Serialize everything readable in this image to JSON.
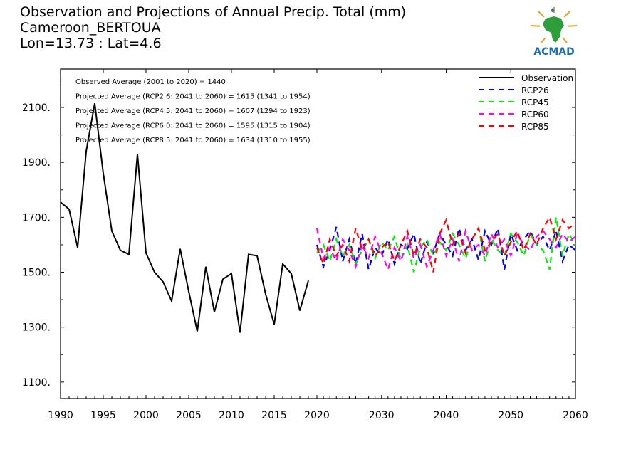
{
  "title_lines": [
    "Observation and Projections of Annual Precip. Total (mm)",
    "Cameroon_BERTOUA",
    "Lon=13.73 : Lat=4.6"
  ],
  "logo": {
    "text": "ACMAD"
  },
  "colors": {
    "Observation": "#000000",
    "RCP26": "#0000ff",
    "RCP45": "#00ee00",
    "RCP60": "#ff00ff",
    "RCP85": "#ff0000"
  },
  "chart_data": {
    "type": "line",
    "ylim": [
      1040,
      2240
    ],
    "y_ticks": [
      1100,
      1300,
      1500,
      1700,
      1900,
      2100
    ],
    "y_tick_labels": [
      "1100.",
      "1300.",
      "1500.",
      "1700.",
      "1900.",
      "2100."
    ],
    "x_ticks": [
      1990,
      1995,
      2000,
      2005,
      2010,
      2015,
      2020,
      2030,
      2040,
      2050,
      2060
    ],
    "x_tick_labels": [
      "1990",
      "1995",
      "2000",
      "2005",
      "2010",
      "2015",
      "2020",
      "2030",
      "2040",
      "2050",
      "2060"
    ],
    "annotations": [
      "Observed Average (2001 to 2020) = 1440",
      "Projected Average (RCP2.6: 2041 to 2060) = 1615 (1341 to 1954)",
      "Projected Average (RCP4.5: 2041 to 2060) = 1607 (1294 to 1923)",
      "Projected Average (RCP6.0: 2041 to 2060) = 1595 (1315 to 1904)",
      "Projected Average (RCP8.5: 2041 to 2060) = 1634 (1310 to 1955)"
    ],
    "legend_position": "top-right",
    "grid": false,
    "series": [
      {
        "name": "Observation",
        "style": "solid",
        "x": [
          1990,
          1991,
          1992,
          1993,
          1994,
          1995,
          1996,
          1997,
          1998,
          1999,
          2000,
          2001,
          2002,
          2003,
          2004,
          2005,
          2006,
          2007,
          2008,
          2009,
          2010,
          2011,
          2012,
          2013,
          2014,
          2015,
          2016,
          2017,
          2018,
          2019,
          2020
        ],
        "y": [
          1755,
          1730,
          1590,
          1940,
          2115,
          1860,
          1650,
          1580,
          1565,
          1930,
          1570,
          1500,
          1465,
          1395,
          1585,
          1430,
          1285,
          1520,
          1355,
          1475,
          1495,
          1280,
          1565,
          1560,
          1420,
          1310,
          1530,
          1495,
          1360,
          1470,
          null
        ]
      },
      {
        "name": "RCP26",
        "style": "dashed",
        "x": [
          2020,
          2021,
          2022,
          2023,
          2024,
          2025,
          2026,
          2027,
          2028,
          2029,
          2030,
          2031,
          2032,
          2033,
          2034,
          2035,
          2036,
          2037,
          2038,
          2039,
          2040,
          2041,
          2042,
          2043,
          2044,
          2045,
          2046,
          2047,
          2048,
          2049,
          2050,
          2051,
          2052,
          2053,
          2054,
          2055,
          2056,
          2057,
          2058,
          2059,
          2060
        ],
        "y": [
          1600,
          1520,
          1580,
          1665,
          1540,
          1620,
          1530,
          1640,
          1510,
          1590,
          1560,
          1620,
          1530,
          1600,
          1585,
          1640,
          1530,
          1610,
          1570,
          1640,
          1600,
          1560,
          1660,
          1580,
          1620,
          1545,
          1650,
          1600,
          1660,
          1510,
          1640,
          1580,
          1620,
          1650,
          1600,
          1630,
          1580,
          1650,
          1540,
          1600,
          1580
        ]
      },
      {
        "name": "RCP45",
        "style": "dashed",
        "x": [
          2020,
          2021,
          2022,
          2023,
          2024,
          2025,
          2026,
          2027,
          2028,
          2029,
          2030,
          2031,
          2032,
          2033,
          2034,
          2035,
          2036,
          2037,
          2038,
          2039,
          2040,
          2041,
          2042,
          2043,
          2044,
          2045,
          2046,
          2047,
          2048,
          2049,
          2050,
          2051,
          2052,
          2053,
          2054,
          2055,
          2056,
          2057,
          2058,
          2059,
          2060
        ],
        "y": [
          1570,
          1600,
          1540,
          1620,
          1560,
          1600,
          1530,
          1580,
          1620,
          1550,
          1610,
          1580,
          1630,
          1545,
          1600,
          1500,
          1590,
          1620,
          1560,
          1610,
          1580,
          1640,
          1600,
          1550,
          1620,
          1660,
          1540,
          1620,
          1580,
          1560,
          1640,
          1610,
          1560,
          1640,
          1600,
          1580,
          1510,
          1700,
          1560,
          1640,
          1600
        ]
      },
      {
        "name": "RCP60",
        "style": "dashed",
        "x": [
          2020,
          2021,
          2022,
          2023,
          2024,
          2025,
          2026,
          2027,
          2028,
          2029,
          2030,
          2031,
          2032,
          2033,
          2034,
          2035,
          2036,
          2037,
          2038,
          2039,
          2040,
          2041,
          2042,
          2043,
          2044,
          2045,
          2046,
          2047,
          2048,
          2049,
          2050,
          2051,
          2052,
          2053,
          2054,
          2055,
          2056,
          2057,
          2058,
          2059,
          2060
        ],
        "y": [
          1660,
          1550,
          1590,
          1540,
          1620,
          1580,
          1520,
          1600,
          1550,
          1630,
          1570,
          1510,
          1590,
          1540,
          1630,
          1550,
          1600,
          1520,
          1580,
          1640,
          1560,
          1620,
          1540,
          1650,
          1580,
          1600,
          1560,
          1640,
          1590,
          1620,
          1560,
          1640,
          1600,
          1580,
          1630,
          1650,
          1620,
          1590,
          1640,
          1610,
          1630
        ]
      },
      {
        "name": "RCP85",
        "style": "dashed",
        "x": [
          2020,
          2021,
          2022,
          2023,
          2024,
          2025,
          2026,
          2027,
          2028,
          2029,
          2030,
          2031,
          2032,
          2033,
          2034,
          2035,
          2036,
          2037,
          2038,
          2039,
          2040,
          2041,
          2042,
          2043,
          2044,
          2045,
          2046,
          2047,
          2048,
          2049,
          2050,
          2051,
          2052,
          2053,
          2054,
          2055,
          2056,
          2057,
          2058,
          2059,
          2060
        ],
        "y": [
          1590,
          1530,
          1620,
          1560,
          1600,
          1540,
          1660,
          1580,
          1620,
          1560,
          1590,
          1610,
          1540,
          1600,
          1650,
          1560,
          1620,
          1590,
          1500,
          1640,
          1690,
          1600,
          1640,
          1570,
          1620,
          1660,
          1580,
          1610,
          1640,
          1560,
          1610,
          1650,
          1580,
          1640,
          1600,
          1660,
          1700,
          1620,
          1690,
          1660,
          1680
        ]
      }
    ]
  }
}
